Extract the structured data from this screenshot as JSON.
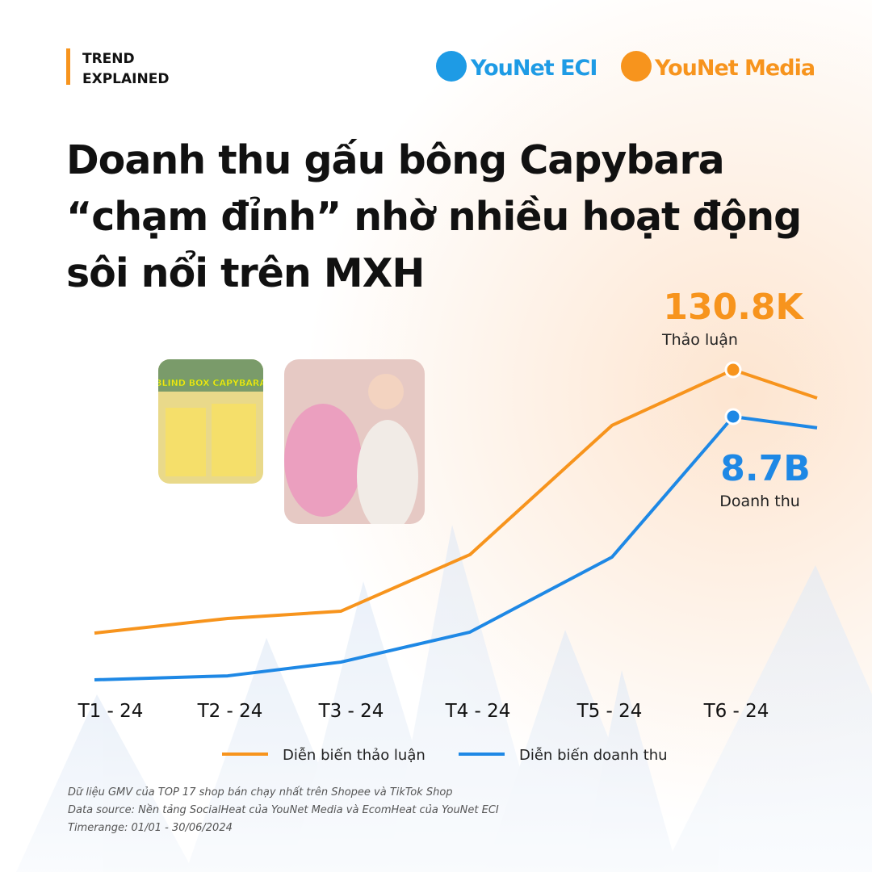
{
  "header": {
    "tag": [
      "TREND",
      "EXPLAINED"
    ],
    "logos": [
      "YouNet ECI",
      "YouNet Media"
    ]
  },
  "chart_data": {
    "type": "line",
    "title": [
      "Doanh thu gấu bông Capybara",
      "“chạm đỉnh” nhờ nhiều hoạt động",
      "sôi nổi trên MXH"
    ],
    "image_caption": "BLIND BOX CAPYBARA",
    "categories": [
      "T1 - 24",
      "T2 - 24",
      "T3 - 24",
      "T4 - 24",
      "T5 - 24",
      "T6 - 24",
      null
    ],
    "series": [
      {
        "name": "Diễn biến thảo luận",
        "color": "#f7941d",
        "values": [
          24700,
          30600,
          33500,
          56300,
          108400,
          130800,
          119400
        ],
        "value_labels": [
          null,
          null,
          null,
          null,
          null,
          "130.8K",
          null
        ],
        "label_name": "Thảo luận"
      },
      {
        "name": "Diễn biến doanh thu",
        "color": "#1e88e5",
        "axis": "y2",
        "values": [
          455000000,
          580000000,
          1010000000,
          1950000000,
          4300000000,
          8700000000,
          8350000000
        ],
        "value_labels": [
          null,
          null,
          null,
          null,
          null,
          "8.7B",
          null
        ],
        "label_name": "Doanh thu"
      }
    ],
    "notes": [
      "Dữ liệu GMV của TOP 17 shop bán chạy nhất trên Shopee và TikTok Shop",
      "Data source: Nền tảng SocialHeat của YouNet Media và EcomHeat của YouNet ECI",
      "Timerange: 01/01 - 30/06/2024"
    ]
  }
}
